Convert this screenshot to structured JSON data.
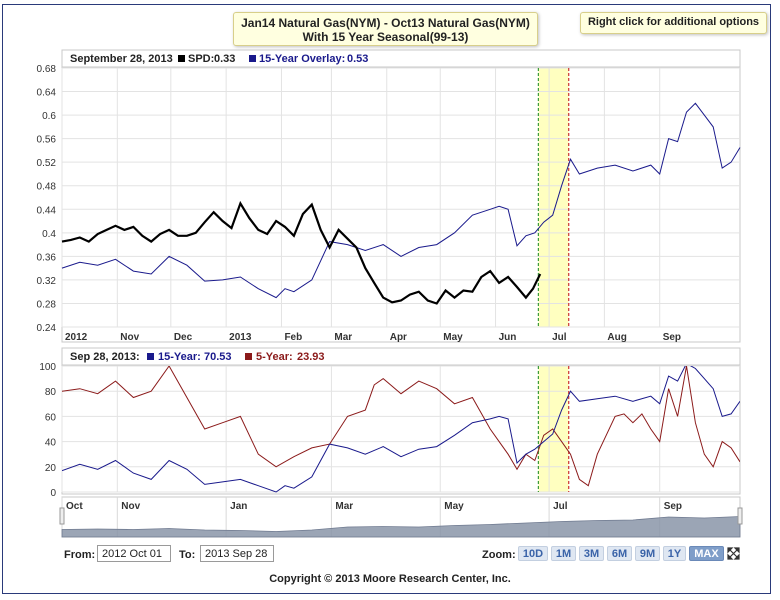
{
  "title_line1": "Jan14 Natural Gas(NYM) - Oct13 Natural Gas(NYM)",
  "title_line2": "With 15 Year Seasonal(99-13)",
  "options_label": "Right click for additional options",
  "legend_top": {
    "date": "September 28, 2013",
    "spd_label": "SPD:",
    "spd_value": "0.33",
    "overlay_label": "15-Year Overlay:",
    "overlay_value": "0.53"
  },
  "legend_bottom": {
    "date": "Sep 28, 2013:",
    "y15_label": "15-Year:",
    "y15_value": "70.53",
    "y5_label": "5-Year:",
    "y5_value": "23.93"
  },
  "colors": {
    "spd": "#000000",
    "overlay": "#1a1a8c",
    "five_year": "#8b1a1a",
    "highlight": "#ffffc0",
    "green_line": "#3a9a3a",
    "red_line": "#cc3333",
    "navigator": "#8a95a8"
  },
  "controls": {
    "from_label": "From:",
    "from_value": "2012 Oct 01",
    "to_label": "To:",
    "to_value": "2013 Sep 28",
    "zoom_label": "Zoom:",
    "zoom_options": [
      "10D",
      "1M",
      "3M",
      "6M",
      "9M",
      "1Y",
      "MAX"
    ],
    "active_zoom": "MAX"
  },
  "copyright": "Copyright © 2013 Moore Research Center, Inc.",
  "chart_data": [
    {
      "type": "line",
      "title": "Jan14 Natural Gas(NYM) - Oct13 Natural Gas(NYM)",
      "subtitle": "With 15 Year Seasonal(99-13)",
      "ylim": [
        0.24,
        0.68
      ],
      "yticks": [
        0.24,
        0.28,
        0.32,
        0.36,
        0.4,
        0.44,
        0.48,
        0.52,
        0.56,
        0.6,
        0.64,
        0.68
      ],
      "xlim": [
        0,
        380
      ],
      "xticks": [
        {
          "label": "2012",
          "x": 0
        },
        {
          "label": "Nov",
          "x": 31
        },
        {
          "label": "Dec",
          "x": 61
        },
        {
          "label": "2013",
          "x": 92
        },
        {
          "label": "Feb",
          "x": 123
        },
        {
          "label": "Mar",
          "x": 151
        },
        {
          "label": "Apr",
          "x": 182
        },
        {
          "label": "May",
          "x": 212
        },
        {
          "label": "Jun",
          "x": 243
        },
        {
          "label": "Jul",
          "x": 273
        },
        {
          "label": "Aug",
          "x": 304
        },
        {
          "label": "Sep",
          "x": 335
        }
      ],
      "highlight_range": [
        267,
        284
      ],
      "series": [
        {
          "name": "SPD",
          "color": "#000000",
          "x": [
            0,
            5,
            10,
            15,
            20,
            25,
            30,
            35,
            40,
            45,
            50,
            55,
            60,
            65,
            70,
            75,
            80,
            85,
            90,
            95,
            100,
            105,
            110,
            115,
            120,
            125,
            130,
            135,
            140,
            145,
            150,
            155,
            160,
            165,
            170,
            175,
            180,
            185,
            190,
            195,
            200,
            205,
            210,
            215,
            220,
            225,
            230,
            235,
            240,
            245,
            250,
            255,
            260,
            264,
            268
          ],
          "y": [
            0.385,
            0.388,
            0.392,
            0.385,
            0.398,
            0.405,
            0.412,
            0.405,
            0.41,
            0.395,
            0.385,
            0.398,
            0.405,
            0.395,
            0.395,
            0.4,
            0.418,
            0.435,
            0.42,
            0.408,
            0.45,
            0.425,
            0.405,
            0.398,
            0.42,
            0.41,
            0.395,
            0.432,
            0.448,
            0.405,
            0.375,
            0.405,
            0.39,
            0.375,
            0.34,
            0.315,
            0.29,
            0.282,
            0.285,
            0.295,
            0.3,
            0.285,
            0.28,
            0.302,
            0.29,
            0.302,
            0.3,
            0.325,
            0.335,
            0.315,
            0.325,
            0.308,
            0.29,
            0.305,
            0.33
          ]
        },
        {
          "name": "15-Year Overlay",
          "color": "#1a1a8c",
          "x": [
            0,
            10,
            20,
            30,
            40,
            50,
            60,
            70,
            80,
            90,
            100,
            110,
            120,
            125,
            130,
            140,
            150,
            160,
            170,
            180,
            190,
            200,
            210,
            220,
            230,
            240,
            245,
            250,
            255,
            260,
            265,
            270,
            275,
            280,
            285,
            290,
            300,
            310,
            320,
            330,
            335,
            340,
            345,
            350,
            355,
            360,
            365,
            370,
            375,
            380
          ],
          "y": [
            0.34,
            0.35,
            0.345,
            0.355,
            0.335,
            0.33,
            0.36,
            0.345,
            0.318,
            0.32,
            0.325,
            0.305,
            0.29,
            0.305,
            0.3,
            0.32,
            0.385,
            0.38,
            0.37,
            0.38,
            0.36,
            0.375,
            0.38,
            0.4,
            0.43,
            0.44,
            0.445,
            0.44,
            0.378,
            0.395,
            0.4,
            0.418,
            0.43,
            0.48,
            0.525,
            0.5,
            0.51,
            0.515,
            0.505,
            0.515,
            0.5,
            0.56,
            0.555,
            0.605,
            0.62,
            0.6,
            0.58,
            0.51,
            0.52,
            0.545
          ]
        }
      ]
    },
    {
      "type": "line",
      "title": "Seasonal Pattern Index",
      "ylim": [
        0,
        100
      ],
      "yticks": [
        0,
        20,
        40,
        60,
        80,
        100
      ],
      "xlim": [
        0,
        380
      ],
      "xticks": [
        {
          "label": "Oct",
          "x": 0
        },
        {
          "label": "Nov",
          "x": 31
        },
        {
          "label": "Jan",
          "x": 92
        },
        {
          "label": "Mar",
          "x": 151
        },
        {
          "label": "May",
          "x": 212
        },
        {
          "label": "Jul",
          "x": 273
        },
        {
          "label": "Sep",
          "x": 335
        }
      ],
      "highlight_range": [
        267,
        284
      ],
      "series": [
        {
          "name": "15-Year",
          "color": "#1a1a8c",
          "x": [
            0,
            10,
            20,
            30,
            40,
            50,
            60,
            70,
            80,
            90,
            100,
            110,
            120,
            125,
            130,
            140,
            150,
            160,
            170,
            180,
            190,
            200,
            210,
            220,
            230,
            240,
            245,
            250,
            255,
            260,
            265,
            270,
            275,
            280,
            285,
            290,
            300,
            310,
            320,
            330,
            335,
            340,
            345,
            350,
            355,
            360,
            365,
            370,
            375,
            380
          ],
          "y": [
            17,
            22,
            18,
            25,
            15,
            10,
            25,
            18,
            6,
            8,
            10,
            5,
            0,
            5,
            3,
            12,
            38,
            35,
            30,
            36,
            28,
            34,
            36,
            45,
            55,
            58,
            60,
            58,
            23,
            30,
            34,
            40,
            46,
            65,
            80,
            72,
            74,
            76,
            72,
            76,
            70,
            92,
            88,
            102,
            98,
            90,
            82,
            60,
            62,
            72
          ]
        },
        {
          "name": "5-Year",
          "color": "#8b1a1a",
          "x": [
            0,
            10,
            20,
            30,
            40,
            50,
            60,
            70,
            80,
            90,
            100,
            110,
            120,
            130,
            140,
            150,
            160,
            170,
            175,
            180,
            190,
            200,
            210,
            220,
            230,
            240,
            245,
            250,
            255,
            260,
            265,
            270,
            275,
            280,
            285,
            290,
            295,
            300,
            305,
            310,
            315,
            320,
            325,
            330,
            335,
            340,
            345,
            350,
            355,
            360,
            365,
            370,
            375,
            380
          ],
          "y": [
            80,
            82,
            78,
            88,
            75,
            80,
            100,
            75,
            50,
            55,
            60,
            30,
            20,
            28,
            35,
            38,
            60,
            65,
            85,
            90,
            78,
            88,
            82,
            70,
            75,
            50,
            40,
            30,
            18,
            30,
            25,
            45,
            50,
            40,
            30,
            10,
            5,
            30,
            45,
            60,
            62,
            55,
            62,
            50,
            40,
            82,
            60,
            100,
            55,
            30,
            20,
            40,
            35,
            24
          ]
        }
      ]
    },
    {
      "type": "area",
      "title": "Navigator",
      "xticks": [
        {
          "label": "Oct",
          "x": 0
        },
        {
          "label": "Nov",
          "x": 31
        },
        {
          "label": "Jan",
          "x": 92
        },
        {
          "label": "Mar",
          "x": 151
        },
        {
          "label": "May",
          "x": 212
        },
        {
          "label": "Jul",
          "x": 273
        },
        {
          "label": "Sep",
          "x": 335
        }
      ],
      "xlim": [
        0,
        380
      ],
      "ylim": [
        0,
        100
      ],
      "series": [
        {
          "name": "Navigator",
          "color": "#8a95a8",
          "x": [
            0,
            20,
            40,
            60,
            80,
            100,
            120,
            140,
            160,
            180,
            200,
            220,
            240,
            260,
            280,
            300,
            320,
            340,
            360,
            380
          ],
          "y": [
            30,
            32,
            30,
            34,
            28,
            26,
            22,
            28,
            40,
            42,
            40,
            46,
            50,
            56,
            62,
            66,
            68,
            80,
            76,
            82
          ]
        }
      ]
    }
  ]
}
